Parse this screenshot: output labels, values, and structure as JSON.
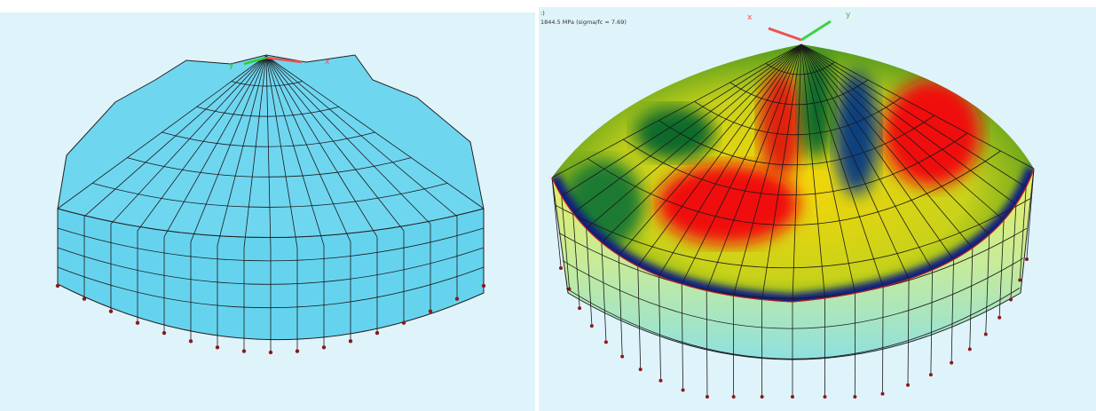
{
  "left_view": {
    "axis_labels": [
      "y",
      "x"
    ]
  },
  "right_view": {
    "header": ":)",
    "stress_label": "1844.5 MPa (sigma/fc = 7.69)",
    "axis_labels": [
      "x",
      "y"
    ]
  }
}
